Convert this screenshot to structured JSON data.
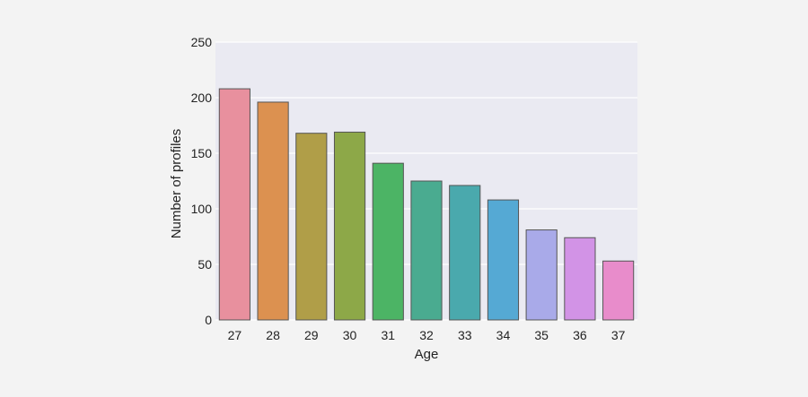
{
  "chart_data": {
    "type": "bar",
    "title": "",
    "xlabel": "Age",
    "ylabel": "Number of profiles",
    "categories": [
      "27",
      "28",
      "29",
      "30",
      "31",
      "32",
      "33",
      "34",
      "35",
      "36",
      "37"
    ],
    "values": [
      208,
      196,
      168,
      169,
      141,
      125,
      121,
      108,
      81,
      74,
      53
    ],
    "ylim": [
      0,
      250
    ],
    "yticks": [
      "0",
      "50",
      "100",
      "150",
      "200",
      "250"
    ],
    "grid": true,
    "legend": "none",
    "colors": {
      "plot_background": "#eaeaf2",
      "page_background": "#f3f3f3",
      "gridline": "#ffffff",
      "bar_edge": "#555555",
      "bars": [
        "#e8909e",
        "#dc9150",
        "#b09e48",
        "#8da848",
        "#4cb465",
        "#4aab90",
        "#4aa9ad",
        "#55a9d4",
        "#a9aae9",
        "#d293e6",
        "#e88ccb"
      ]
    }
  }
}
